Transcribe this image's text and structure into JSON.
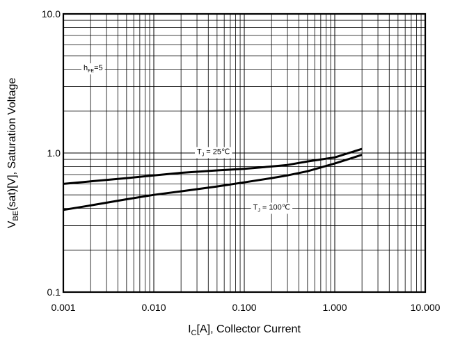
{
  "chart_data": {
    "type": "line",
    "x_scale": "log",
    "y_scale": "log",
    "xlim": [
      0.001,
      10
    ],
    "ylim": [
      0.1,
      10
    ],
    "grid": true,
    "xticks": [
      {
        "value": 0.001,
        "label": "0.001"
      },
      {
        "value": 0.01,
        "label": "0.010"
      },
      {
        "value": 0.1,
        "label": "0.100"
      },
      {
        "value": 1,
        "label": "1.000"
      },
      {
        "value": 10,
        "label": "10.000"
      }
    ],
    "yticks": [
      {
        "value": 0.1,
        "label": "0.1"
      },
      {
        "value": 1,
        "label": "1.0"
      },
      {
        "value": 10,
        "label": "10.0"
      }
    ],
    "xlabel": {
      "main": "I",
      "sub": "C",
      "rest": "[A], Collector Current"
    },
    "ylabel": {
      "main": "V",
      "sub": "BE",
      "rest": "(sat)[V], Saturation Voltage"
    },
    "annotations": {
      "hfe": {
        "main": "h",
        "sub": "FE",
        "rest": "=5"
      }
    },
    "series": [
      {
        "label": {
          "main": "T",
          "sub": "J",
          "rest": " = 25℃"
        },
        "label_at": {
          "x": 0.03,
          "y": 1.03
        },
        "x": [
          0.001,
          0.002,
          0.005,
          0.01,
          0.02,
          0.05,
          0.1,
          0.2,
          0.3,
          0.5,
          1.0,
          2.0
        ],
        "y": [
          0.6,
          0.625,
          0.66,
          0.69,
          0.72,
          0.75,
          0.77,
          0.8,
          0.82,
          0.87,
          0.93,
          1.07
        ]
      },
      {
        "label": {
          "main": "T",
          "sub": "J",
          "rest": " = 100℃"
        },
        "label_at": {
          "x": 0.125,
          "y": 0.41
        },
        "x": [
          0.001,
          0.002,
          0.005,
          0.01,
          0.02,
          0.05,
          0.1,
          0.2,
          0.3,
          0.5,
          1.0,
          2.0
        ],
        "y": [
          0.39,
          0.42,
          0.465,
          0.5,
          0.53,
          0.575,
          0.615,
          0.66,
          0.69,
          0.74,
          0.84,
          0.97
        ]
      }
    ]
  }
}
